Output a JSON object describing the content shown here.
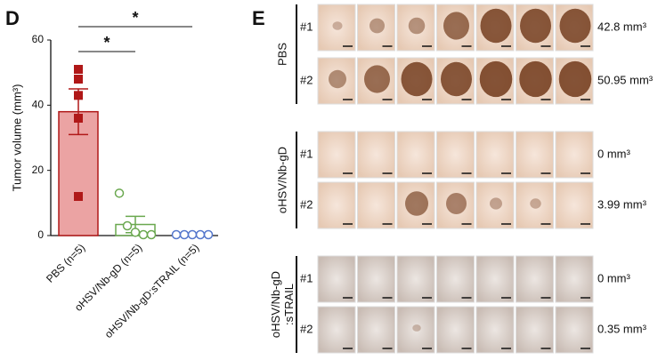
{
  "chart_data": {
    "type": "bar",
    "panel_label": "D",
    "ylabel": "Tumor volume (mm³)",
    "categories": [
      "PBS (n=5)",
      "oHSV/Nb-gD (n=5)",
      "oHSV/Nb-gD:sTRAIL (n=5)"
    ],
    "values": [
      38,
      3.4,
      0
    ],
    "errors": [
      7,
      2.5,
      0
    ],
    "points": [
      [
        51,
        48,
        43,
        36,
        12
      ],
      [
        13,
        3,
        1,
        0,
        0
      ],
      [
        0,
        0,
        0,
        0,
        0
      ]
    ],
    "colors": [
      "#b01818",
      "#6aa84f",
      "#5577cc"
    ],
    "ylim": [
      0,
      60
    ],
    "yticks": [
      0,
      20,
      40,
      60
    ],
    "annotations": [
      "*",
      "*"
    ]
  },
  "panel_e": {
    "panel_label": "E",
    "groups": [
      {
        "label": [
          "PBS"
        ],
        "rows": [
          {
            "label": "#1",
            "volume": "42.8 mm³"
          },
          {
            "label": "#2",
            "volume": "50.95  mm³"
          }
        ]
      },
      {
        "label": [
          "oHSV/Nb-gD"
        ],
        "rows": [
          {
            "label": "#1",
            "volume": "0 mm³"
          },
          {
            "label": "#2",
            "volume": "3.99 mm³"
          }
        ]
      },
      {
        "label": [
          "oHSV/Nb-gD",
          ":sTRAIL"
        ],
        "rows": [
          {
            "label": "#1",
            "volume": "0 mm³"
          },
          {
            "label": "#2",
            "volume": "0.35 mm³"
          }
        ]
      }
    ]
  }
}
